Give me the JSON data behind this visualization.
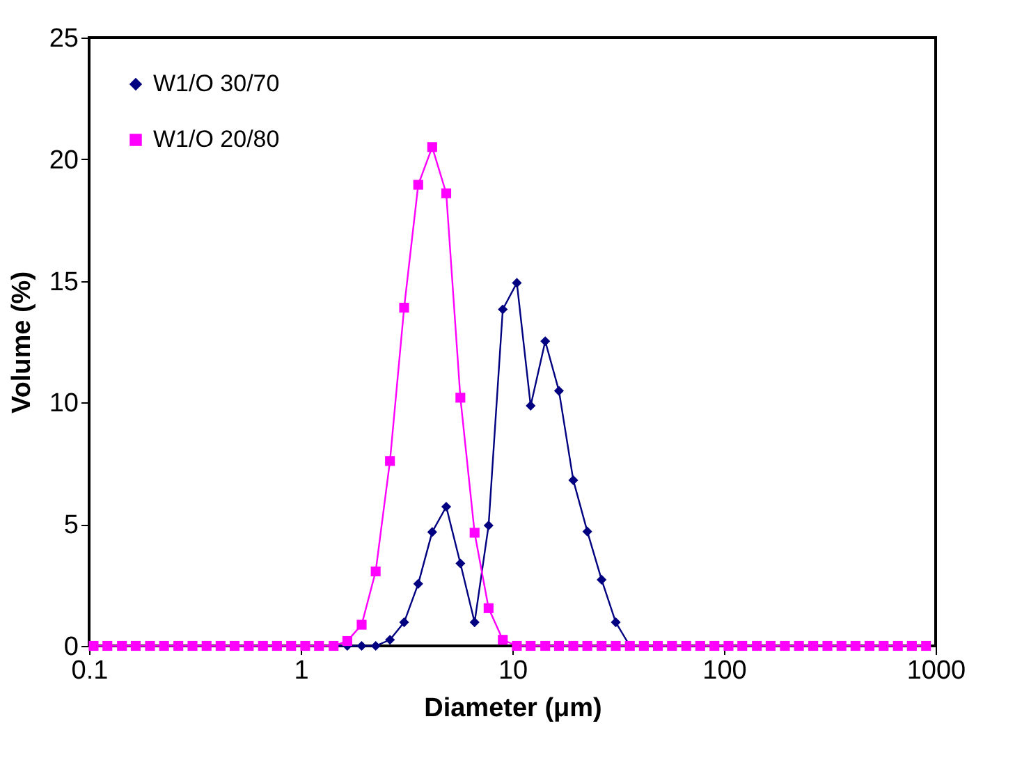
{
  "chart_data": {
    "type": "line",
    "xlabel": "Diameter (μm)",
    "ylabel": "Volume (%)",
    "xlim": [
      0.1,
      1000
    ],
    "xticks": [
      0.1,
      1,
      10,
      100,
      1000
    ],
    "ylim": [
      0,
      25
    ],
    "yticks": [
      0,
      5,
      10,
      15,
      20,
      25
    ],
    "log": "x",
    "grid": false,
    "legend": "top left",
    "line_style": "solid",
    "series": [
      {
        "name": "W1/O 30/70",
        "color": "#000080",
        "marker": "diamond",
        "x": [
          1.43,
          1.66,
          1.94,
          2.26,
          2.64,
          3.08,
          3.59,
          4.18,
          4.87,
          5.68,
          6.63,
          7.72,
          9.01,
          10.5,
          12.2,
          14.3,
          16.6,
          19.4,
          22.6,
          26.4,
          30.8,
          35.9
        ],
        "values": [
          0,
          0,
          0,
          0,
          0.25,
          0.97,
          2.55,
          4.68,
          5.72,
          3.39,
          0.97,
          4.95,
          13.83,
          14.92,
          9.87,
          12.52,
          10.48,
          6.81,
          4.7,
          2.72,
          0.97,
          0
        ]
      },
      {
        "name": "W1/O 20/80",
        "color": "#ff00ff",
        "marker": "square",
        "x": [
          0.105,
          0.122,
          0.143,
          0.166,
          0.194,
          0.226,
          0.264,
          0.308,
          0.359,
          0.418,
          0.487,
          0.568,
          0.663,
          0.772,
          0.901,
          1.05,
          1.22,
          1.43,
          1.66,
          1.94,
          2.26,
          2.64,
          3.08,
          3.59,
          4.18,
          4.87,
          5.68,
          6.63,
          7.72,
          9.01,
          10.5,
          12.2,
          14.3,
          16.6,
          19.4,
          22.6,
          26.4,
          30.8,
          35.9,
          41.8,
          48.7,
          56.8,
          66.3,
          77.2,
          90.1,
          105,
          122,
          143,
          166,
          194,
          226,
          264,
          308,
          359,
          418,
          487,
          568,
          663,
          772,
          901
        ],
        "values": [
          0,
          0,
          0,
          0,
          0,
          0,
          0,
          0,
          0,
          0,
          0,
          0,
          0,
          0,
          0,
          0,
          0,
          0,
          0.2,
          0.87,
          3.06,
          7.6,
          13.9,
          18.95,
          20.5,
          18.6,
          10.2,
          4.65,
          1.55,
          0.25,
          0,
          0,
          0,
          0,
          0,
          0,
          0,
          0,
          0,
          0,
          0,
          0,
          0,
          0,
          0,
          0,
          0,
          0,
          0,
          0,
          0,
          0,
          0,
          0,
          0,
          0,
          0,
          0,
          0,
          0
        ]
      }
    ]
  }
}
